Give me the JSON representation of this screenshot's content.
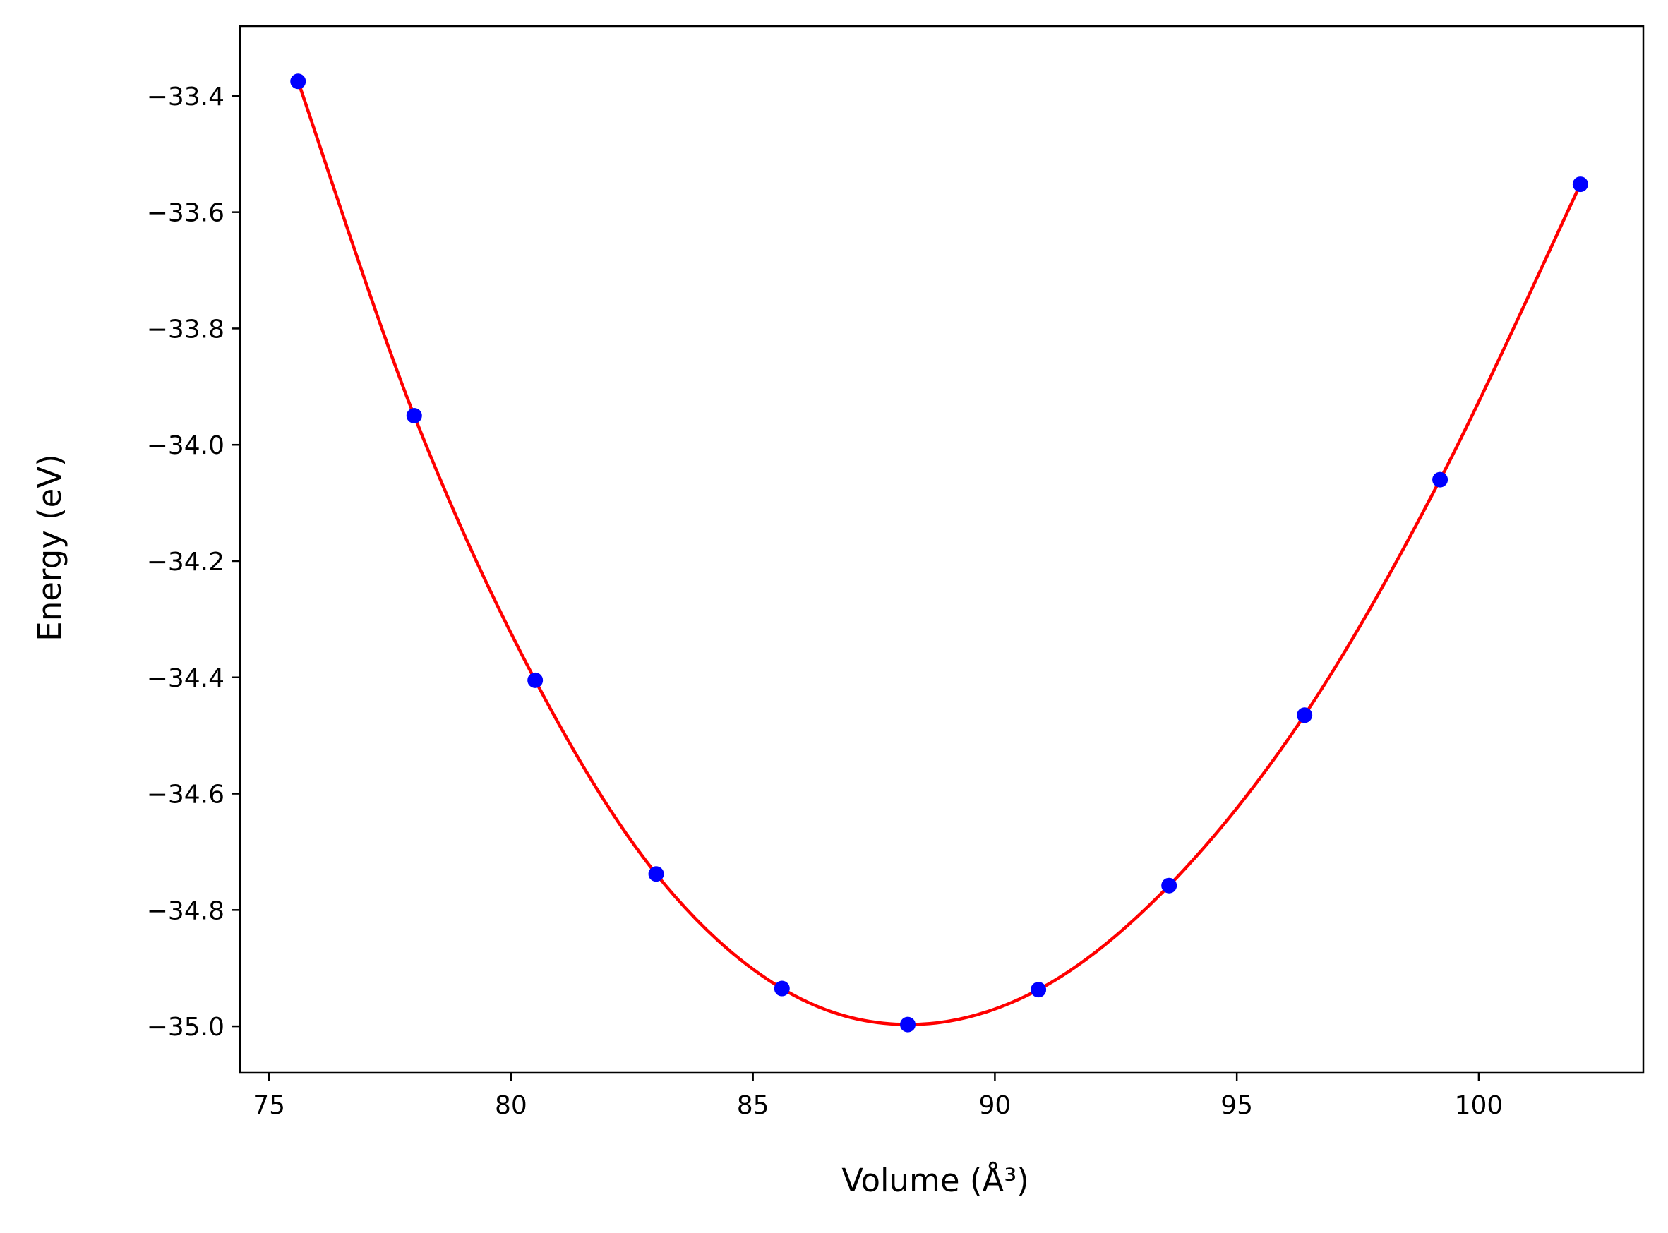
{
  "chart_data": {
    "type": "scatter",
    "title": "",
    "xlabel": "Volume (Å³)",
    "ylabel": "Energy (eV)",
    "xlim": [
      74.4,
      103.4
    ],
    "ylim": [
      -35.08,
      -33.28
    ],
    "xticks": [
      75,
      80,
      85,
      90,
      95,
      100
    ],
    "xtick_labels": [
      "75",
      "80",
      "85",
      "90",
      "95",
      "100"
    ],
    "yticks": [
      -33.4,
      -33.6,
      -33.8,
      -34.0,
      -34.2,
      -34.4,
      -34.6,
      -34.8,
      -35.0
    ],
    "ytick_labels": [
      "−33.4",
      "−33.6",
      "−33.8",
      "−34.0",
      "−34.2",
      "−34.4",
      "−34.6",
      "−34.8",
      "−35.0"
    ],
    "grid": false,
    "series": [
      {
        "kind": "points",
        "color": "#0000ff",
        "x": [
          75.6,
          78.0,
          80.5,
          83.0,
          85.6,
          88.2,
          90.9,
          93.6,
          96.4,
          99.2,
          102.1
        ],
        "y": [
          -33.375,
          -33.95,
          -34.405,
          -34.738,
          -34.935,
          -34.997,
          -34.937,
          -34.758,
          -34.465,
          -34.06,
          -33.552
        ]
      },
      {
        "kind": "fit-curve",
        "color": "#ff0000",
        "x": [
          75.6,
          78.0,
          80.5,
          83.0,
          85.6,
          88.2,
          90.9,
          93.6,
          96.4,
          99.2,
          102.1
        ],
        "y": [
          -33.375,
          -33.95,
          -34.405,
          -34.738,
          -34.935,
          -34.997,
          -34.937,
          -34.758,
          -34.465,
          -34.06,
          -33.552
        ]
      }
    ]
  }
}
